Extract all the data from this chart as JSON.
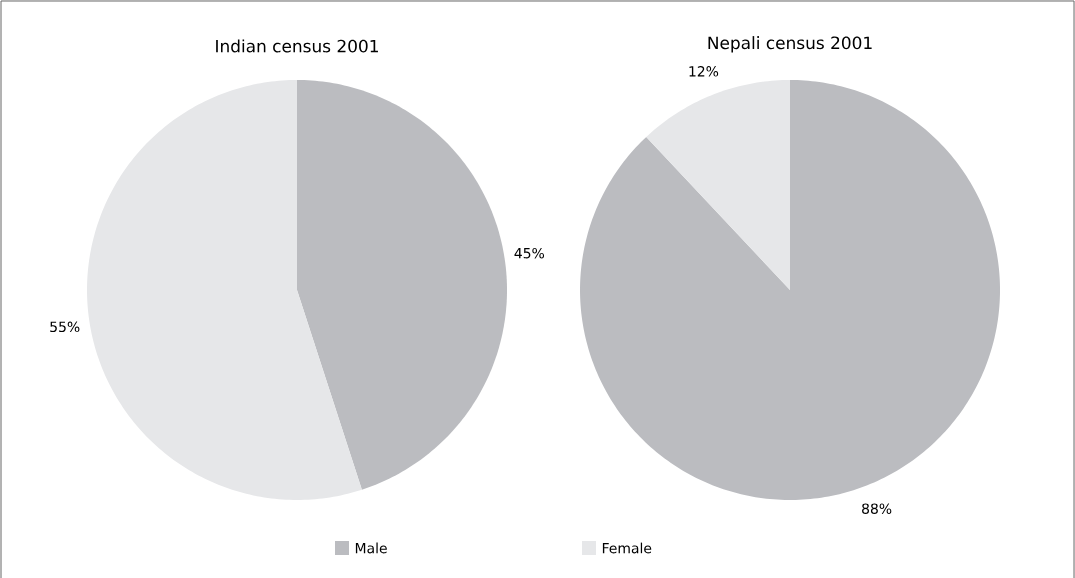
{
  "chart_data": [
    {
      "type": "pie",
      "title": "Indian census 2001",
      "categories": [
        "Male",
        "Female"
      ],
      "values": [
        45,
        55
      ],
      "value_labels": [
        "45%",
        "55%"
      ],
      "colors": [
        "#bbbcc0",
        "#e6e7e9"
      ],
      "legend": "bottom"
    },
    {
      "type": "pie",
      "title": "Nepali census 2001",
      "categories": [
        null,
        null
      ],
      "values": [
        88,
        12
      ],
      "value_labels": [
        "88%",
        "12%"
      ],
      "colors": [
        "#bbbcc0",
        "#e6e7e9"
      ]
    }
  ]
}
